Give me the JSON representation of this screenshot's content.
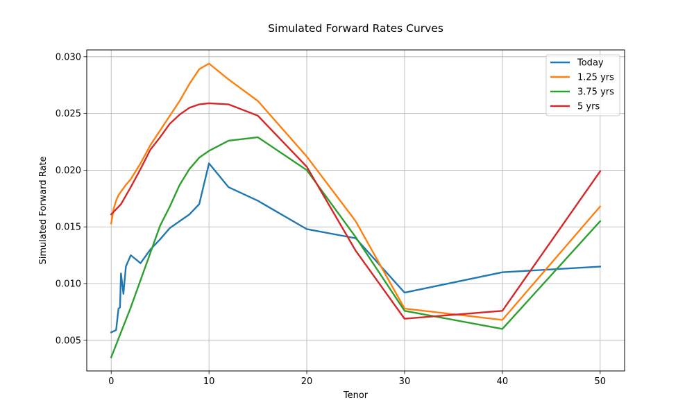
{
  "chart_data": {
    "type": "line",
    "title": "Simulated Forward Rates Curves",
    "xlabel": "Tenor",
    "ylabel": "Simulated Forward Rate",
    "xlim": [
      -2.5,
      52.5
    ],
    "ylim": [
      0.0023,
      0.0306
    ],
    "xticks": [
      0,
      10,
      20,
      30,
      40,
      50
    ],
    "xtick_labels": [
      "0",
      "10",
      "20",
      "30",
      "40",
      "50"
    ],
    "yticks": [
      0.005,
      0.01,
      0.015,
      0.02,
      0.025,
      0.03
    ],
    "ytick_labels": [
      "0.005",
      "0.010",
      "0.015",
      "0.020",
      "0.025",
      "0.030"
    ],
    "grid": true,
    "legend_position": "top-right",
    "series": [
      {
        "name": "Today",
        "color": "#1f77b4",
        "x": [
          0,
          0.5,
          0.75,
          0.9,
          1.0,
          1.25,
          1.5,
          2,
          3,
          4,
          5,
          6,
          7,
          8,
          9,
          10,
          12,
          15,
          20,
          25,
          30,
          40,
          50
        ],
        "y": [
          0.0057,
          0.0059,
          0.0078,
          0.0079,
          0.0109,
          0.0091,
          0.0115,
          0.0125,
          0.0118,
          0.013,
          0.0139,
          0.0149,
          0.0155,
          0.0161,
          0.017,
          0.0206,
          0.0185,
          0.0173,
          0.0148,
          0.014,
          0.0092,
          0.011,
          0.0115
        ]
      },
      {
        "name": "1.25 yrs",
        "color": "#ff7f0e",
        "x": [
          0,
          0.25,
          0.5,
          0.75,
          1,
          1.5,
          2,
          3,
          4,
          5,
          6,
          7,
          8,
          9,
          10,
          12,
          15,
          20,
          25,
          30,
          40,
          50
        ],
        "y": [
          0.0153,
          0.0166,
          0.0173,
          0.0178,
          0.0181,
          0.0187,
          0.0192,
          0.0206,
          0.0222,
          0.0235,
          0.0248,
          0.0261,
          0.0276,
          0.0289,
          0.0294,
          0.028,
          0.0261,
          0.0212,
          0.0155,
          0.0078,
          0.0068,
          0.0168
        ]
      },
      {
        "name": "3.75 yrs",
        "color": "#2ca02c",
        "x": [
          0,
          1,
          2,
          3,
          4,
          5,
          6,
          7,
          8,
          9,
          10,
          12,
          15,
          20,
          25,
          30,
          40,
          50
        ],
        "y": [
          0.0035,
          0.0057,
          0.0079,
          0.0103,
          0.0127,
          0.0151,
          0.0168,
          0.0187,
          0.0201,
          0.0211,
          0.0217,
          0.0226,
          0.0229,
          0.02,
          0.0141,
          0.0076,
          0.006,
          0.0155
        ]
      },
      {
        "name": "5 yrs",
        "color": "#d62728",
        "x": [
          0,
          1,
          2,
          3,
          4,
          5,
          6,
          7,
          8,
          9,
          10,
          12,
          15,
          20,
          25,
          30,
          40,
          50
        ],
        "y": [
          0.0161,
          0.017,
          0.0185,
          0.0201,
          0.0218,
          0.0229,
          0.0241,
          0.0249,
          0.0255,
          0.0258,
          0.0259,
          0.0258,
          0.0248,
          0.0203,
          0.0129,
          0.0069,
          0.0076,
          0.0199
        ]
      }
    ]
  }
}
